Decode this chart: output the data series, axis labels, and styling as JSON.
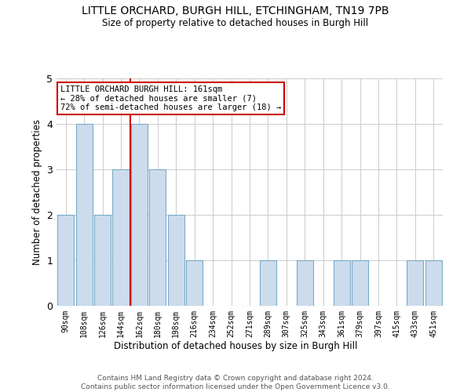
{
  "title": "LITTLE ORCHARD, BURGH HILL, ETCHINGHAM, TN19 7PB",
  "subtitle": "Size of property relative to detached houses in Burgh Hill",
  "xlabel": "Distribution of detached houses by size in Burgh Hill",
  "ylabel": "Number of detached properties",
  "categories": [
    "90sqm",
    "108sqm",
    "126sqm",
    "144sqm",
    "162sqm",
    "180sqm",
    "198sqm",
    "216sqm",
    "234sqm",
    "252sqm",
    "271sqm",
    "289sqm",
    "307sqm",
    "325sqm",
    "343sqm",
    "361sqm",
    "379sqm",
    "397sqm",
    "415sqm",
    "433sqm",
    "451sqm"
  ],
  "values": [
    2,
    4,
    2,
    3,
    4,
    3,
    2,
    1,
    0,
    0,
    0,
    1,
    0,
    1,
    0,
    1,
    1,
    0,
    0,
    1,
    1
  ],
  "bar_color": "#ccdcec",
  "bar_edgecolor": "#7aaac8",
  "highlight_index": 4,
  "highlight_color_line": "#cc0000",
  "annotation_text": "LITTLE ORCHARD BURGH HILL: 161sqm\n← 28% of detached houses are smaller (7)\n72% of semi-detached houses are larger (18) →",
  "annotation_box_edgecolor": "#cc0000",
  "ylim": [
    0,
    5
  ],
  "yticks": [
    0,
    1,
    2,
    3,
    4,
    5
  ],
  "footer_text": "Contains HM Land Registry data © Crown copyright and database right 2024.\nContains public sector information licensed under the Open Government Licence v3.0.",
  "background_color": "#ffffff",
  "grid_color": "#cccccc"
}
